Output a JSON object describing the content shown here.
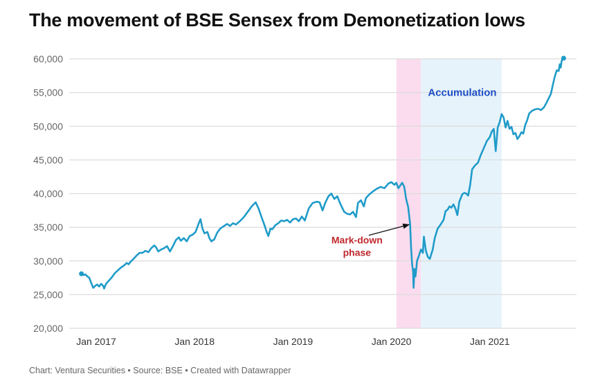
{
  "chart_data": {
    "type": "line",
    "title": "The movement of BSE Sensex from Demonetization lows",
    "xlabel": "",
    "ylabel": "",
    "ylim": [
      20000,
      60000
    ],
    "xlim": [
      2016.88,
      2021.75
    ],
    "yticks": [
      {
        "value": 60000,
        "label": "60,000"
      },
      {
        "value": 55000,
        "label": "55,000"
      },
      {
        "value": 50000,
        "label": "50,000"
      },
      {
        "value": 45000,
        "label": "45,000"
      },
      {
        "value": 40000,
        "label": "40,000"
      },
      {
        "value": 35000,
        "label": "35,000"
      },
      {
        "value": 30000,
        "label": "30,000"
      },
      {
        "value": 25000,
        "label": "25,000"
      },
      {
        "value": 20000,
        "label": "20,000"
      }
    ],
    "xticks": [
      {
        "value": 2017.0,
        "label": "Jan 2017"
      },
      {
        "value": 2018.0,
        "label": "Jan 2018"
      },
      {
        "value": 2019.0,
        "label": "Jan 2019"
      },
      {
        "value": 2020.0,
        "label": "Jan 2020"
      },
      {
        "value": 2021.0,
        "label": "Jan 2021"
      }
    ],
    "grid": true,
    "series": [
      {
        "name": "BSE Sensex",
        "color": "#1f9bc9",
        "points": [
          [
            2016.85,
            28100
          ],
          [
            2016.87,
            27900
          ],
          [
            2016.89,
            28000
          ],
          [
            2016.91,
            27700
          ],
          [
            2016.93,
            27500
          ],
          [
            2016.95,
            26700
          ],
          [
            2016.97,
            26000
          ],
          [
            2016.99,
            26300
          ],
          [
            2017.01,
            26500
          ],
          [
            2017.03,
            26200
          ],
          [
            2017.05,
            26600
          ],
          [
            2017.07,
            26300
          ],
          [
            2017.08,
            25900
          ],
          [
            2017.1,
            26600
          ],
          [
            2017.13,
            27100
          ],
          [
            2017.16,
            27600
          ],
          [
            2017.19,
            28200
          ],
          [
            2017.22,
            28600
          ],
          [
            2017.25,
            29000
          ],
          [
            2017.28,
            29300
          ],
          [
            2017.31,
            29700
          ],
          [
            2017.33,
            29500
          ],
          [
            2017.35,
            29900
          ],
          [
            2017.38,
            30300
          ],
          [
            2017.41,
            30800
          ],
          [
            2017.44,
            31200
          ],
          [
            2017.47,
            31200
          ],
          [
            2017.5,
            31500
          ],
          [
            2017.53,
            31300
          ],
          [
            2017.56,
            31900
          ],
          [
            2017.59,
            32300
          ],
          [
            2017.61,
            32000
          ],
          [
            2017.63,
            31400
          ],
          [
            2017.66,
            31700
          ],
          [
            2017.69,
            31900
          ],
          [
            2017.72,
            32200
          ],
          [
            2017.75,
            31400
          ],
          [
            2017.78,
            32200
          ],
          [
            2017.81,
            33100
          ],
          [
            2017.84,
            33500
          ],
          [
            2017.86,
            33000
          ],
          [
            2017.89,
            33400
          ],
          [
            2017.92,
            32900
          ],
          [
            2017.95,
            33700
          ],
          [
            2017.98,
            33900
          ],
          [
            2018.01,
            34300
          ],
          [
            2018.04,
            35500
          ],
          [
            2018.06,
            36200
          ],
          [
            2018.08,
            34800
          ],
          [
            2018.1,
            34100
          ],
          [
            2018.13,
            34300
          ],
          [
            2018.15,
            33400
          ],
          [
            2018.17,
            32900
          ],
          [
            2018.2,
            33200
          ],
          [
            2018.23,
            34200
          ],
          [
            2018.26,
            34800
          ],
          [
            2018.3,
            35200
          ],
          [
            2018.33,
            35500
          ],
          [
            2018.36,
            35200
          ],
          [
            2018.39,
            35600
          ],
          [
            2018.42,
            35400
          ],
          [
            2018.46,
            35900
          ],
          [
            2018.5,
            36500
          ],
          [
            2018.54,
            37300
          ],
          [
            2018.58,
            38100
          ],
          [
            2018.62,
            38700
          ],
          [
            2018.65,
            37800
          ],
          [
            2018.68,
            36500
          ],
          [
            2018.71,
            35300
          ],
          [
            2018.73,
            34400
          ],
          [
            2018.75,
            33700
          ],
          [
            2018.77,
            34800
          ],
          [
            2018.79,
            34700
          ],
          [
            2018.82,
            35300
          ],
          [
            2018.85,
            35600
          ],
          [
            2018.88,
            36000
          ],
          [
            2018.91,
            35900
          ],
          [
            2018.94,
            36100
          ],
          [
            2018.97,
            35700
          ],
          [
            2019.0,
            36200
          ],
          [
            2019.03,
            36300
          ],
          [
            2019.06,
            35900
          ],
          [
            2019.09,
            36600
          ],
          [
            2019.12,
            36000
          ],
          [
            2019.16,
            37800
          ],
          [
            2019.2,
            38600
          ],
          [
            2019.24,
            38800
          ],
          [
            2019.27,
            38700
          ],
          [
            2019.3,
            37500
          ],
          [
            2019.33,
            38700
          ],
          [
            2019.36,
            39600
          ],
          [
            2019.39,
            40000
          ],
          [
            2019.42,
            39200
          ],
          [
            2019.45,
            39600
          ],
          [
            2019.48,
            38500
          ],
          [
            2019.52,
            37300
          ],
          [
            2019.55,
            37000
          ],
          [
            2019.58,
            36900
          ],
          [
            2019.61,
            37300
          ],
          [
            2019.64,
            36500
          ],
          [
            2019.66,
            38600
          ],
          [
            2019.69,
            39000
          ],
          [
            2019.72,
            38100
          ],
          [
            2019.74,
            39300
          ],
          [
            2019.77,
            39800
          ],
          [
            2019.81,
            40300
          ],
          [
            2019.85,
            40700
          ],
          [
            2019.89,
            41000
          ],
          [
            2019.93,
            40800
          ],
          [
            2019.97,
            41500
          ],
          [
            2020.0,
            41700
          ],
          [
            2020.03,
            41300
          ],
          [
            2020.05,
            41600
          ],
          [
            2020.07,
            40800
          ],
          [
            2020.09,
            41200
          ],
          [
            2020.11,
            41600
          ],
          [
            2020.13,
            41000
          ],
          [
            2020.15,
            39200
          ],
          [
            2020.17,
            38000
          ],
          [
            2020.19,
            35500
          ],
          [
            2020.2,
            32000
          ],
          [
            2020.21,
            29500
          ],
          [
            2020.22,
            28400
          ],
          [
            2020.225,
            26000
          ],
          [
            2020.235,
            28800
          ],
          [
            2020.245,
            27700
          ],
          [
            2020.26,
            30000
          ],
          [
            2020.28,
            30800
          ],
          [
            2020.3,
            31700
          ],
          [
            2020.32,
            31200
          ],
          [
            2020.33,
            33600
          ],
          [
            2020.35,
            31500
          ],
          [
            2020.37,
            30600
          ],
          [
            2020.39,
            30300
          ],
          [
            2020.42,
            31700
          ],
          [
            2020.44,
            33400
          ],
          [
            2020.47,
            34800
          ],
          [
            2020.5,
            35400
          ],
          [
            2020.53,
            36100
          ],
          [
            2020.55,
            37400
          ],
          [
            2020.57,
            37600
          ],
          [
            2020.59,
            38100
          ],
          [
            2020.61,
            37900
          ],
          [
            2020.63,
            38400
          ],
          [
            2020.65,
            37800
          ],
          [
            2020.67,
            36800
          ],
          [
            2020.69,
            38800
          ],
          [
            2020.72,
            39900
          ],
          [
            2020.74,
            40100
          ],
          [
            2020.76,
            40000
          ],
          [
            2020.78,
            39700
          ],
          [
            2020.8,
            41300
          ],
          [
            2020.82,
            43600
          ],
          [
            2020.85,
            44200
          ],
          [
            2020.88,
            44600
          ],
          [
            2020.91,
            45800
          ],
          [
            2020.94,
            46800
          ],
          [
            2020.97,
            47800
          ],
          [
            2021.0,
            48400
          ],
          [
            2021.02,
            49200
          ],
          [
            2021.04,
            49600
          ],
          [
            2021.06,
            46300
          ],
          [
            2021.08,
            49800
          ],
          [
            2021.1,
            50600
          ],
          [
            2021.12,
            51800
          ],
          [
            2021.14,
            51300
          ],
          [
            2021.16,
            49800
          ],
          [
            2021.18,
            50800
          ],
          [
            2021.2,
            49600
          ],
          [
            2021.22,
            49900
          ],
          [
            2021.24,
            48800
          ],
          [
            2021.26,
            49000
          ],
          [
            2021.28,
            48100
          ],
          [
            2021.3,
            48500
          ],
          [
            2021.32,
            49100
          ],
          [
            2021.34,
            48900
          ],
          [
            2021.36,
            50200
          ],
          [
            2021.38,
            50900
          ],
          [
            2021.4,
            51900
          ],
          [
            2021.43,
            52300
          ],
          [
            2021.46,
            52500
          ],
          [
            2021.49,
            52600
          ],
          [
            2021.52,
            52400
          ],
          [
            2021.55,
            52800
          ],
          [
            2021.58,
            53600
          ],
          [
            2021.6,
            54200
          ],
          [
            2021.62,
            54800
          ],
          [
            2021.64,
            56100
          ],
          [
            2021.66,
            57400
          ],
          [
            2021.68,
            58300
          ],
          [
            2021.7,
            58200
          ],
          [
            2021.71,
            59200
          ],
          [
            2021.72,
            58700
          ],
          [
            2021.73,
            59700
          ],
          [
            2021.74,
            60000
          ],
          [
            2021.75,
            60100
          ]
        ]
      }
    ],
    "bands": [
      {
        "name": "mark-down-phase",
        "from": 2020.05,
        "to": 2020.3,
        "color": "#fbdcee"
      },
      {
        "name": "accumulation",
        "from": 2020.3,
        "to": 2021.12,
        "color": "#e6f3fb"
      }
    ],
    "annotations": [
      {
        "name": "accumulation-label",
        "text": "Accumulation",
        "x": 2020.72,
        "y": 55000,
        "color": "#1d4fc4"
      },
      {
        "name": "mark-down-label",
        "lines": [
          "Mark-down",
          "phase"
        ],
        "x": 2019.65,
        "y": 32600,
        "color": "#c0282d"
      },
      {
        "name": "mark-down-arrow",
        "from": [
          2019.77,
          33800
        ],
        "to": [
          2020.18,
          35400
        ]
      }
    ],
    "footer": "Chart: Ventura Securities • Source: BSE • Created with Datawrapper"
  }
}
